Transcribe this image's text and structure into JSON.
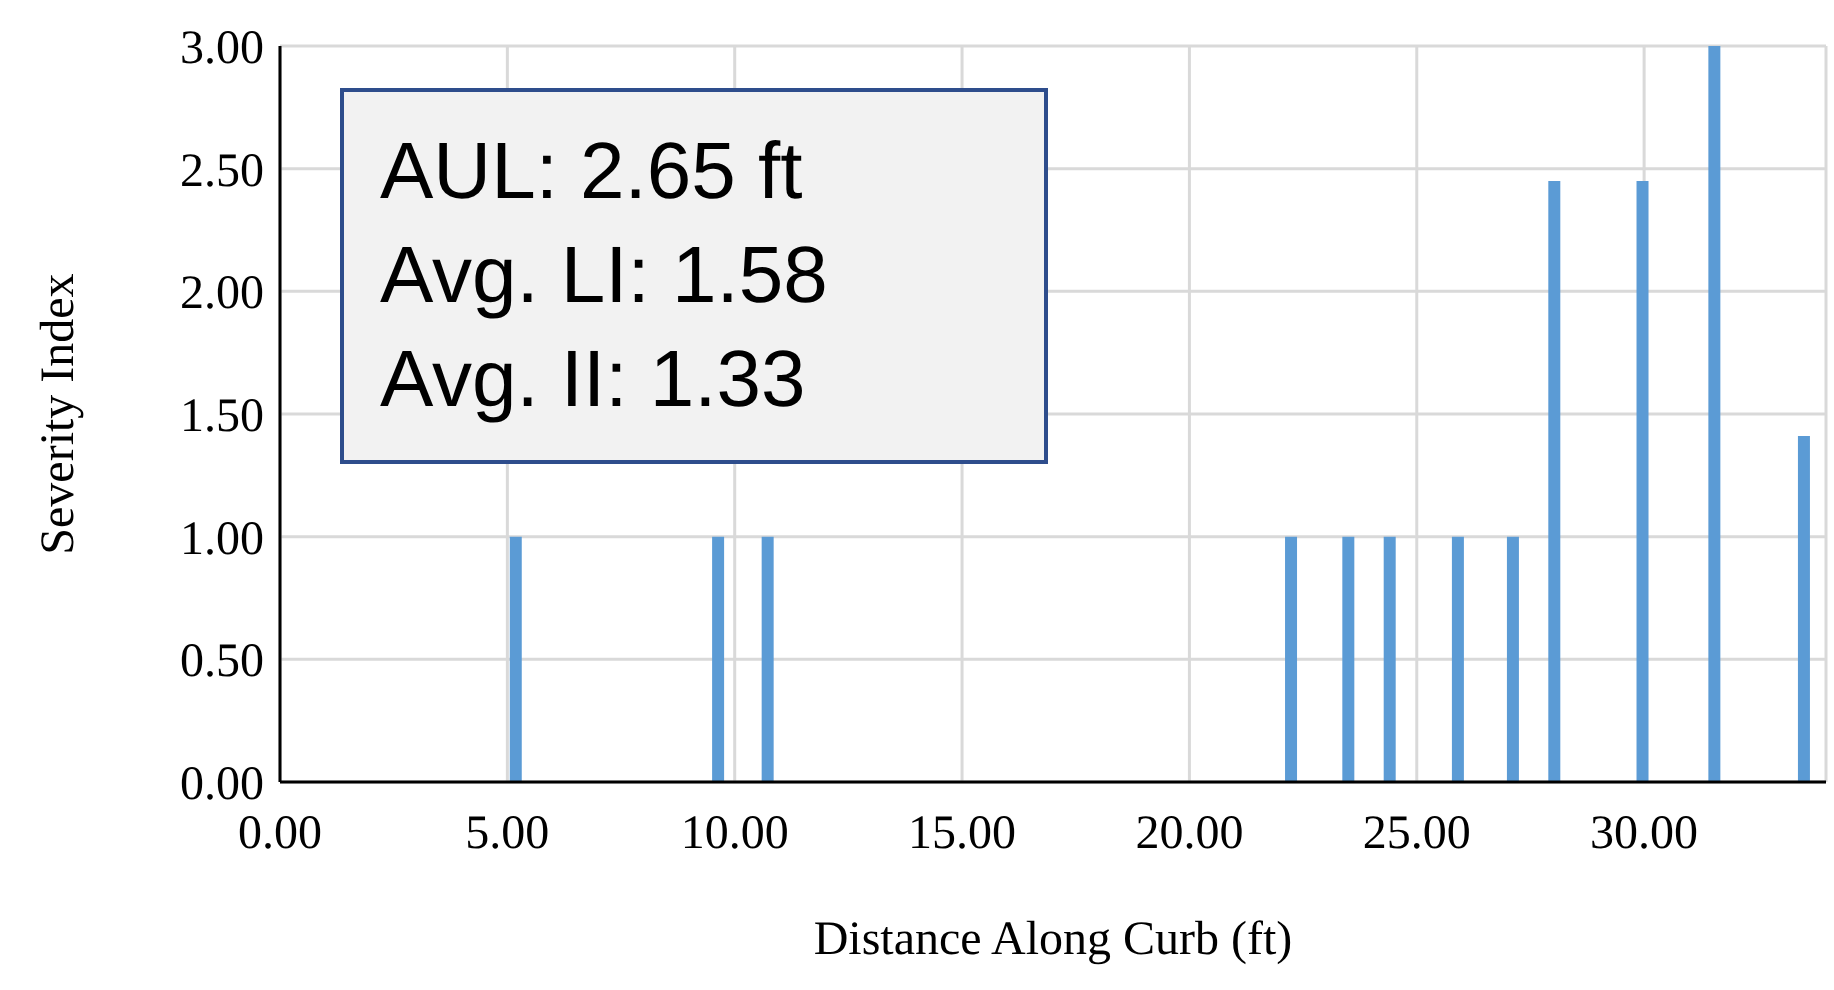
{
  "chart_data": {
    "type": "bar",
    "xlabel": "Distance Along Curb (ft)",
    "ylabel": "Severity  Index",
    "x": [
      5.2,
      9.65,
      10.74,
      22.25,
      23.51,
      24.42,
      25.92,
      27.13,
      28.04,
      29.98,
      31.56,
      33.53
    ],
    "values": [
      1,
      1,
      1,
      1,
      1,
      1,
      1,
      1,
      2.45,
      2.45,
      3,
      1.41
    ],
    "color": "#5b9bd5",
    "xlim": [
      0,
      34
    ],
    "xticks": [
      {
        "value": 0,
        "label": "0.00"
      },
      {
        "value": 5,
        "label": "5.00"
      },
      {
        "value": 10,
        "label": "10.00"
      },
      {
        "value": 15,
        "label": "15.00"
      },
      {
        "value": 20,
        "label": "20.00"
      },
      {
        "value": 25,
        "label": "25.00"
      },
      {
        "value": 30,
        "label": "30.00"
      }
    ],
    "ylim": [
      0,
      3
    ],
    "yticks": [
      {
        "value": 0,
        "label": "0.00"
      },
      {
        "value": 0.5,
        "label": "0.50"
      },
      {
        "value": 1,
        "label": "1.00"
      },
      {
        "value": 1.5,
        "label": "1.50"
      },
      {
        "value": 2,
        "label": "2.00"
      },
      {
        "value": 2.5,
        "label": "2.50"
      },
      {
        "value": 3,
        "label": "3.00"
      }
    ],
    "grid": true,
    "annotations": [
      "AUL: 2.65 ft",
      "Avg. LI: 1.58",
      "Avg. II: 1.33"
    ]
  }
}
